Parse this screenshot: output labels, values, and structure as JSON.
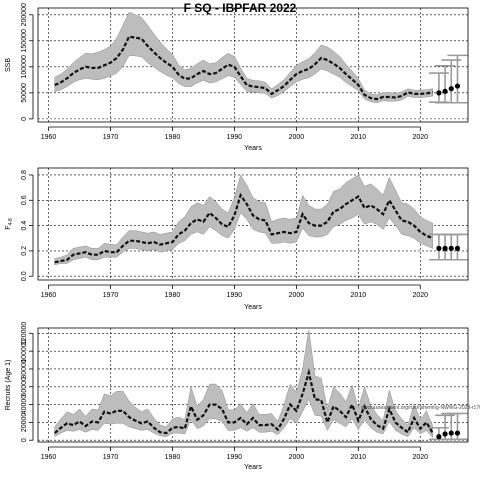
{
  "title": "F SQ - IBPFAR 2022",
  "note": "stockassessment.org/run/nsherring-NWWG-2023-r170",
  "chart_data": [
    {
      "type": "line",
      "ylabel": "SSB",
      "xlabel": "Years",
      "xlim": [
        1958.3,
        2027.7
      ],
      "ylim": [
        -6000,
        213000
      ],
      "xticks": [
        1960,
        1970,
        1980,
        1990,
        2000,
        2010,
        2020
      ],
      "yticks": [
        0,
        50000,
        100000,
        150000,
        200000
      ],
      "ytick_labels": [
        "0",
        "50000",
        "100000",
        "150000",
        "200000"
      ],
      "x": [
        1961,
        1962,
        1963,
        1964,
        1965,
        1966,
        1967,
        1968,
        1969,
        1970,
        1971,
        1972,
        1973,
        1974,
        1975,
        1976,
        1977,
        1978,
        1979,
        1980,
        1981,
        1982,
        1983,
        1984,
        1985,
        1986,
        1987,
        1988,
        1989,
        1990,
        1991,
        1992,
        1993,
        1994,
        1995,
        1996,
        1997,
        1998,
        1999,
        2000,
        2001,
        2002,
        2003,
        2004,
        2005,
        2006,
        2007,
        2008,
        2009,
        2010,
        2011,
        2012,
        2013,
        2014,
        2015,
        2016,
        2017,
        2018,
        2019,
        2020,
        2021,
        2022
      ],
      "series": [
        {
          "role": "median",
          "values": [
            65000,
            70000,
            78000,
            88000,
            95000,
            100000,
            98000,
            98000,
            103000,
            108000,
            117000,
            133000,
            158000,
            156000,
            154000,
            140000,
            128000,
            117000,
            108000,
            100000,
            85000,
            77000,
            78000,
            86000,
            92000,
            86000,
            88000,
            96000,
            104000,
            100000,
            82000,
            65000,
            62000,
            61000,
            59000,
            48000,
            55000,
            63000,
            75000,
            86000,
            92000,
            96000,
            105000,
            117000,
            113000,
            106000,
            98000,
            86000,
            76000,
            65000,
            46000,
            40000,
            38000,
            42000,
            42000,
            41000,
            44000,
            51000,
            48000,
            48000,
            49000,
            51000
          ]
        },
        {
          "role": "upper",
          "values": [
            80000,
            86000,
            96000,
            108000,
            118000,
            126000,
            125000,
            128000,
            133000,
            140000,
            155000,
            180000,
            205000,
            200000,
            195000,
            180000,
            163000,
            148000,
            135000,
            124000,
            104000,
            94000,
            97000,
            106000,
            113000,
            106000,
            108000,
            118000,
            126000,
            120000,
            98000,
            78000,
            74000,
            73000,
            70000,
            58000,
            66000,
            75000,
            89000,
            103000,
            110000,
            116000,
            127000,
            142000,
            138000,
            130000,
            120000,
            105000,
            92000,
            78000,
            55000,
            48000,
            46000,
            50000,
            51000,
            49000,
            52000,
            58000,
            55000,
            55000,
            56000,
            58000
          ]
        },
        {
          "role": "lower",
          "values": [
            52000,
            56000,
            62000,
            70000,
            75000,
            78000,
            76000,
            75000,
            78000,
            82000,
            88000,
            100000,
            122000,
            121000,
            119000,
            108000,
            99000,
            91000,
            84000,
            79000,
            68000,
            62000,
            62000,
            69000,
            74000,
            69000,
            71000,
            77000,
            83000,
            80000,
            66000,
            53000,
            51000,
            50000,
            49000,
            40000,
            45000,
            52000,
            62000,
            71000,
            76000,
            79000,
            86000,
            96000,
            92000,
            86000,
            80000,
            70000,
            62000,
            54000,
            38000,
            33000,
            31000,
            35000,
            34000,
            34000,
            36000,
            44000,
            41000,
            41000,
            42000,
            44000
          ]
        }
      ],
      "forecast": {
        "x": [
          2023,
          2024,
          2025,
          2026
        ],
        "median": [
          50000,
          53000,
          58000,
          63000
        ],
        "upper": [
          88000,
          102000,
          113000,
          122000
        ],
        "lower": [
          32000,
          31000,
          31000,
          31000
        ]
      }
    },
    {
      "type": "line",
      "ylabel": "F",
      "ylabel_sub": "4-8",
      "xlabel": "Years",
      "xlim": [
        1958.3,
        2027.7
      ],
      "ylim": [
        -0.03,
        0.855
      ],
      "xticks": [
        1960,
        1970,
        1980,
        1990,
        2000,
        2010,
        2020
      ],
      "yticks": [
        0,
        0.2,
        0.4,
        0.6,
        0.8
      ],
      "ytick_labels": [
        "0.0",
        "0.2",
        "0.4",
        "0.6",
        "0.8"
      ],
      "x": [
        1961,
        1962,
        1963,
        1964,
        1965,
        1966,
        1967,
        1968,
        1969,
        1970,
        1971,
        1972,
        1973,
        1974,
        1975,
        1976,
        1977,
        1978,
        1979,
        1980,
        1981,
        1982,
        1983,
        1984,
        1985,
        1986,
        1987,
        1988,
        1989,
        1990,
        1991,
        1992,
        1993,
        1994,
        1995,
        1996,
        1997,
        1998,
        1999,
        2000,
        2001,
        2002,
        2003,
        2004,
        2005,
        2006,
        2007,
        2008,
        2009,
        2010,
        2011,
        2012,
        2013,
        2014,
        2015,
        2016,
        2017,
        2018,
        2019,
        2020,
        2021,
        2022
      ],
      "series": [
        {
          "role": "median",
          "values": [
            0.11,
            0.12,
            0.13,
            0.17,
            0.18,
            0.19,
            0.17,
            0.17,
            0.2,
            0.19,
            0.19,
            0.24,
            0.28,
            0.28,
            0.27,
            0.26,
            0.27,
            0.25,
            0.26,
            0.27,
            0.33,
            0.36,
            0.42,
            0.45,
            0.43,
            0.5,
            0.46,
            0.41,
            0.39,
            0.48,
            0.64,
            0.57,
            0.48,
            0.45,
            0.44,
            0.33,
            0.34,
            0.35,
            0.34,
            0.35,
            0.49,
            0.42,
            0.4,
            0.4,
            0.43,
            0.51,
            0.53,
            0.57,
            0.6,
            0.63,
            0.54,
            0.56,
            0.53,
            0.49,
            0.6,
            0.52,
            0.44,
            0.43,
            0.4,
            0.35,
            0.32,
            0.3
          ]
        },
        {
          "role": "upper",
          "values": [
            0.14,
            0.15,
            0.17,
            0.22,
            0.23,
            0.24,
            0.22,
            0.22,
            0.26,
            0.25,
            0.25,
            0.31,
            0.36,
            0.36,
            0.35,
            0.34,
            0.35,
            0.33,
            0.34,
            0.35,
            0.43,
            0.47,
            0.55,
            0.58,
            0.56,
            0.63,
            0.59,
            0.53,
            0.5,
            0.62,
            0.8,
            0.72,
            0.62,
            0.59,
            0.58,
            0.43,
            0.45,
            0.46,
            0.45,
            0.46,
            0.64,
            0.56,
            0.53,
            0.53,
            0.57,
            0.67,
            0.69,
            0.74,
            0.77,
            0.8,
            0.71,
            0.73,
            0.69,
            0.64,
            0.78,
            0.68,
            0.58,
            0.57,
            0.53,
            0.47,
            0.44,
            0.42
          ]
        },
        {
          "role": "lower",
          "values": [
            0.09,
            0.1,
            0.1,
            0.13,
            0.14,
            0.15,
            0.13,
            0.13,
            0.15,
            0.15,
            0.15,
            0.19,
            0.22,
            0.22,
            0.21,
            0.2,
            0.21,
            0.19,
            0.2,
            0.21,
            0.26,
            0.28,
            0.33,
            0.35,
            0.33,
            0.39,
            0.36,
            0.32,
            0.3,
            0.37,
            0.5,
            0.45,
            0.37,
            0.35,
            0.34,
            0.26,
            0.26,
            0.27,
            0.26,
            0.27,
            0.38,
            0.32,
            0.31,
            0.31,
            0.33,
            0.39,
            0.41,
            0.44,
            0.46,
            0.49,
            0.41,
            0.43,
            0.41,
            0.37,
            0.46,
            0.4,
            0.33,
            0.32,
            0.3,
            0.26,
            0.24,
            0.22
          ]
        }
      ],
      "forecast": {
        "x": [
          2023,
          2024,
          2025,
          2026
        ],
        "median": [
          0.22,
          0.22,
          0.22,
          0.22
        ],
        "upper": [
          0.33,
          0.33,
          0.33,
          0.33
        ],
        "lower": [
          0.13,
          0.13,
          0.13,
          0.13
        ]
      }
    },
    {
      "type": "line",
      "ylabel": "Recruits (Age 1)",
      "xlabel": "Years",
      "xlim": [
        1958.3,
        2027.7
      ],
      "ylim": [
        -2000,
        126000
      ],
      "xticks": [
        1960,
        1970,
        1980,
        1990,
        2000,
        2010,
        2020
      ],
      "yticks": [
        0,
        20000,
        40000,
        60000,
        80000,
        100000,
        120000
      ],
      "ytick_labels": [
        "0",
        "20000",
        "40000",
        "60000",
        "80000",
        "100000",
        "120000"
      ],
      "x": [
        1961,
        1962,
        1963,
        1964,
        1965,
        1966,
        1967,
        1968,
        1969,
        1970,
        1971,
        1972,
        1973,
        1974,
        1975,
        1976,
        1977,
        1978,
        1979,
        1980,
        1981,
        1982,
        1983,
        1984,
        1985,
        1986,
        1987,
        1988,
        1989,
        1990,
        1991,
        1992,
        1993,
        1994,
        1995,
        1996,
        1997,
        1998,
        1999,
        2000,
        2001,
        2002,
        2003,
        2004,
        2005,
        2006,
        2007,
        2008,
        2009,
        2010,
        2011,
        2012,
        2013,
        2014,
        2015,
        2016,
        2017,
        2018,
        2019,
        2020,
        2021,
        2022
      ],
      "series": [
        {
          "role": "median",
          "values": [
            8000,
            14000,
            19000,
            17000,
            21000,
            16000,
            21000,
            20000,
            32000,
            30000,
            33000,
            33000,
            26000,
            22000,
            19000,
            21000,
            14000,
            9000,
            8000,
            14000,
            15000,
            13000,
            38000,
            23000,
            28000,
            40000,
            40000,
            35000,
            20000,
            20000,
            25000,
            18000,
            25000,
            17000,
            17000,
            18000,
            12000,
            24000,
            40000,
            33000,
            52000,
            76000,
            46000,
            45000,
            20000,
            38000,
            33000,
            26000,
            40000,
            22000,
            38000,
            24000,
            17000,
            13000,
            35000,
            20000,
            14000,
            9000,
            25000,
            13000,
            20000,
            8000
          ]
        },
        {
          "role": "upper",
          "values": [
            15000,
            24000,
            32000,
            29000,
            35000,
            27000,
            35000,
            34000,
            52000,
            50000,
            55000,
            55000,
            44000,
            37000,
            32000,
            35000,
            25000,
            17000,
            15000,
            24000,
            26000,
            23000,
            60000,
            38000,
            46000,
            63000,
            63000,
            56000,
            34000,
            34000,
            41000,
            31000,
            41000,
            29000,
            29000,
            30000,
            21000,
            40000,
            63000,
            54000,
            80000,
            124000,
            72000,
            70000,
            35000,
            60000,
            53000,
            43000,
            62000,
            36000,
            60000,
            39000,
            29000,
            22000,
            56000,
            33000,
            24000,
            17000,
            41000,
            23000,
            33000,
            16000
          ]
        },
        {
          "role": "lower",
          "values": [
            4000,
            8000,
            11000,
            10000,
            12000,
            9000,
            12000,
            11000,
            19000,
            18000,
            19000,
            19000,
            15000,
            13000,
            11000,
            12000,
            8000,
            5000,
            4000,
            8000,
            8000,
            7000,
            23000,
            13000,
            16000,
            24000,
            24000,
            21000,
            11000,
            11000,
            14000,
            10000,
            14000,
            9000,
            9000,
            10000,
            6000,
            14000,
            24000,
            19000,
            32000,
            46000,
            28000,
            27000,
            11000,
            23000,
            19000,
            15000,
            24000,
            12000,
            23000,
            14000,
            9000,
            7000,
            21000,
            11000,
            7000,
            4000,
            14000,
            7000,
            11000,
            3000
          ]
        }
      ],
      "forecast": {
        "x": [
          2023,
          2024,
          2025,
          2026
        ],
        "median": [
          4000,
          7000,
          8000,
          8000
        ],
        "upper": [
          14000,
          28000,
          30000,
          30000
        ],
        "lower": [
          1000,
          1000,
          1000,
          1000
        ]
      }
    }
  ]
}
